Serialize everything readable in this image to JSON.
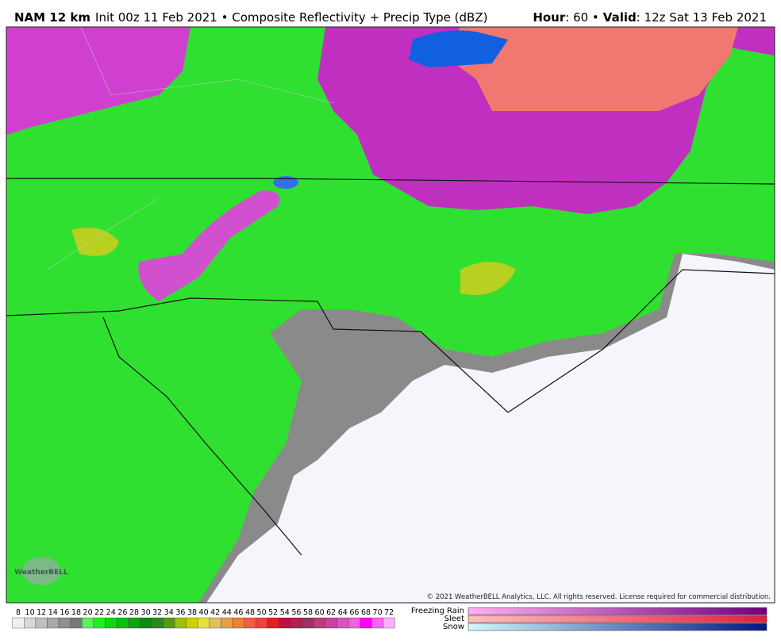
{
  "header": {
    "model": "NAM 12 km",
    "description": "Init 00z 11 Feb 2021 • Composite Reflectivity + Precip Type (dBZ)",
    "hour_label": "Hour",
    "hour_value": ": 60 •",
    "valid_label": "Valid",
    "valid_value": ": 12z Sat 13 Feb 2021"
  },
  "map": {
    "logo": "WeatherBELL",
    "copyright": "© 2021 WeatherBELL Analytics, LLC. All rights reserved. License required for commercial distribution."
  },
  "legend": {
    "scale": {
      "labels": [
        8,
        10,
        12,
        14,
        16,
        18,
        20,
        22,
        24,
        26,
        28,
        30,
        32,
        34,
        36,
        38,
        40,
        42,
        44,
        46,
        48,
        50,
        52,
        54,
        56,
        58,
        60,
        62,
        64,
        66,
        68,
        70,
        72
      ],
      "colors": [
        "#f0f0f0",
        "#d8d8d8",
        "#c0c0c0",
        "#a8a8a8",
        "#909090",
        "#787878",
        "#5af25a",
        "#22ee22",
        "#10d810",
        "#0cc00c",
        "#0aa80a",
        "#089008",
        "#2a8a1a",
        "#5a9a10",
        "#a0c010",
        "#d0d000",
        "#e8e040",
        "#e0c060",
        "#e8a040",
        "#f08030",
        "#f06040",
        "#f04040",
        "#e02020",
        "#c01040",
        "#b02050",
        "#a03060",
        "#c03880",
        "#d040a0",
        "#e050c0",
        "#f060e0",
        "#ff00ff",
        "#ff60ff",
        "#ffb0ff"
      ]
    },
    "precip_types": [
      "Freezing Rain",
      "Sleet",
      "Snow"
    ]
  }
}
